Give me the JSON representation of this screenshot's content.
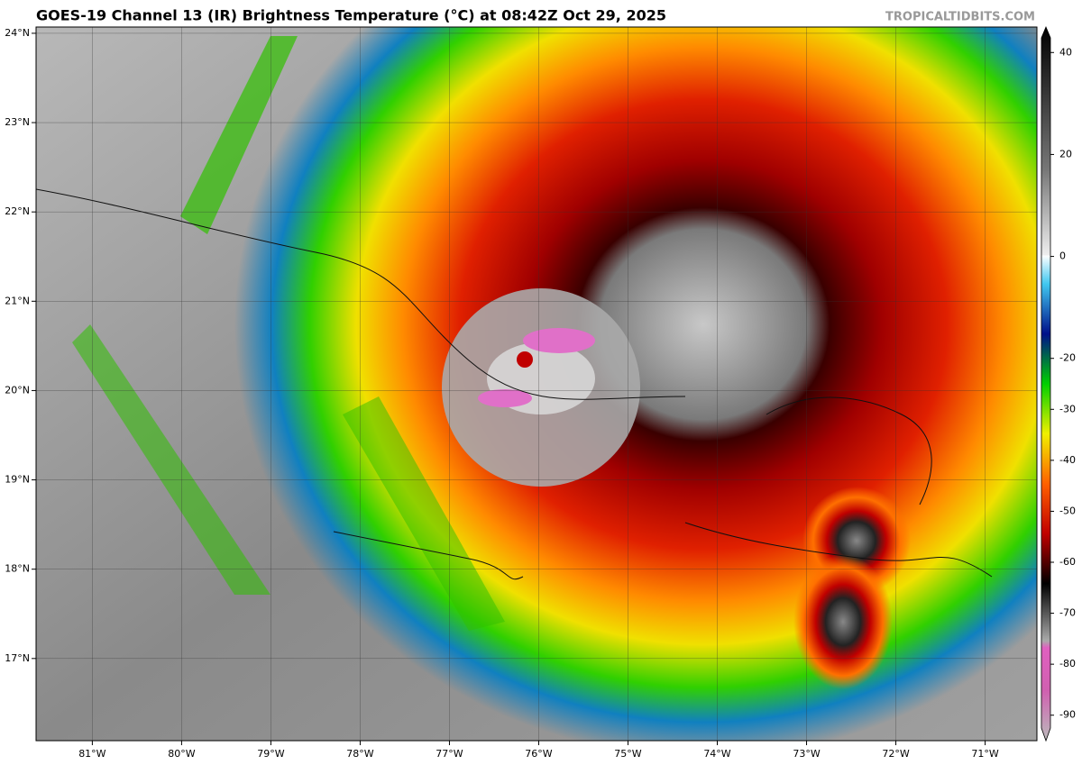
{
  "header": {
    "title": "GOES-19 Channel 13 (IR) Brightness Temperature (°C) at 08:42Z Oct 29, 2025",
    "credit": "TROPICALTIDBITS.COM"
  },
  "map": {
    "xlim": [
      -81.63,
      -70.42
    ],
    "ylim": [
      16.08,
      24.07
    ],
    "xticks": [
      {
        "value": -81,
        "label": "81°W"
      },
      {
        "value": -80,
        "label": "80°W"
      },
      {
        "value": -79,
        "label": "79°W"
      },
      {
        "value": -78,
        "label": "78°W"
      },
      {
        "value": -77,
        "label": "77°W"
      },
      {
        "value": -76,
        "label": "76°W"
      },
      {
        "value": -75,
        "label": "75°W"
      },
      {
        "value": -74,
        "label": "74°W"
      },
      {
        "value": -73,
        "label": "73°W"
      },
      {
        "value": -72,
        "label": "72°W"
      },
      {
        "value": -71,
        "label": "71°W"
      }
    ],
    "yticks": [
      {
        "value": 17,
        "label": "17°N"
      },
      {
        "value": 18,
        "label": "18°N"
      },
      {
        "value": 19,
        "label": "19°N"
      },
      {
        "value": 20,
        "label": "20°N"
      },
      {
        "value": 21,
        "label": "21°N"
      },
      {
        "value": 22,
        "label": "22°N"
      },
      {
        "value": 23,
        "label": "23°N"
      },
      {
        "value": 24,
        "label": "24°N"
      }
    ],
    "grid": true
  },
  "colorbar": {
    "clim": [
      -95,
      45
    ],
    "ticks": [
      40,
      20,
      0,
      -20,
      -30,
      -40,
      -50,
      -60,
      -70,
      -80,
      -90
    ]
  }
}
